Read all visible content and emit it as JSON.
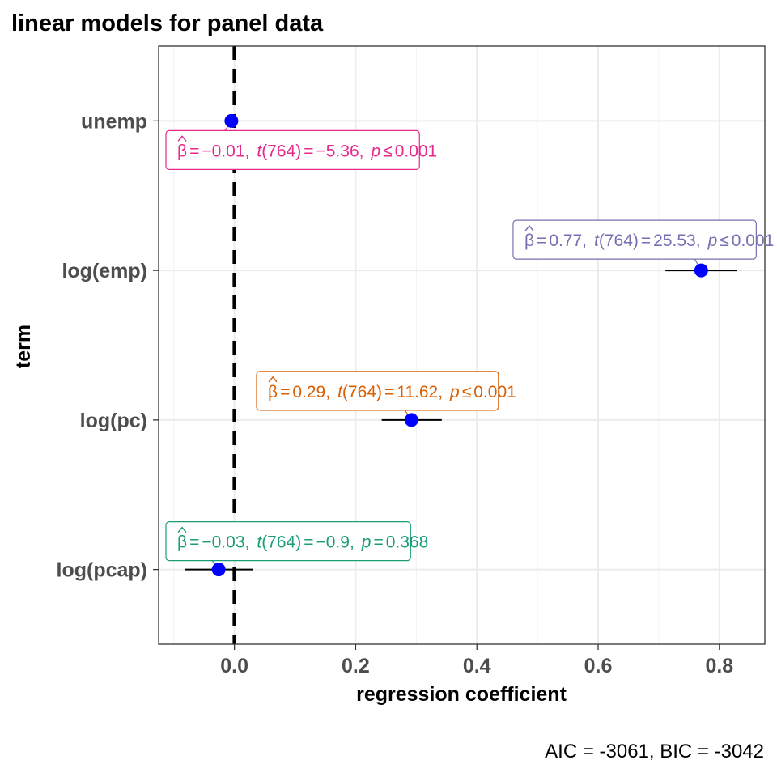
{
  "chart_data": {
    "type": "scatter",
    "title": "linear models for panel data",
    "xlabel": "regression coefficient",
    "ylabel": "term",
    "caption": "AIC = -3061, BIC = -3042",
    "xlim": [
      -0.125,
      0.875
    ],
    "xticks": [
      0.0,
      0.2,
      0.4,
      0.6,
      0.8
    ],
    "xtick_labels": [
      "0.0",
      "0.2",
      "0.4",
      "0.6",
      "0.8"
    ],
    "categories": [
      "unemp",
      "log(emp)",
      "log(pc)",
      "log(pcap)"
    ],
    "reference_line_x": 0,
    "grid": true,
    "point_color": "#0000ff",
    "points": [
      {
        "term": "unemp",
        "estimate": -0.005,
        "ci_low": -0.007,
        "ci_high": -0.003,
        "label_color": "#e7298a",
        "label": {
          "beta": "β",
          "eq": "=",
          "est": "−0.01,",
          "t": "t",
          "df": "(764)",
          "tval": "−5.36,",
          "p": "p",
          "op": "≤",
          "pval": "0.001"
        }
      },
      {
        "term": "log(emp)",
        "estimate": 0.77,
        "ci_low": 0.711,
        "ci_high": 0.829,
        "label_color": "#7570b3",
        "label": {
          "beta": "β",
          "eq": "=",
          "est": "0.77,",
          "t": "t",
          "df": "(764)",
          "tval": "25.53,",
          "p": "p",
          "op": "≤",
          "pval": "0.001"
        }
      },
      {
        "term": "log(pc)",
        "estimate": 0.292,
        "ci_low": 0.243,
        "ci_high": 0.342,
        "label_color": "#d95f02",
        "label": {
          "beta": "β",
          "eq": "=",
          "est": "0.29,",
          "t": "t",
          "df": "(764)",
          "tval": "11.62,",
          "p": "p",
          "op": "≤",
          "pval": "0.001"
        }
      },
      {
        "term": "log(pcap)",
        "estimate": -0.026,
        "ci_low": -0.082,
        "ci_high": 0.03,
        "label_color": "#1b9e77",
        "label": {
          "beta": "β",
          "eq": "=",
          "est": "−0.03,",
          "t": "t",
          "df": "(764)",
          "tval": "−0.9,",
          "p": "p",
          "op": "=",
          "pval": "0.368"
        }
      }
    ]
  }
}
